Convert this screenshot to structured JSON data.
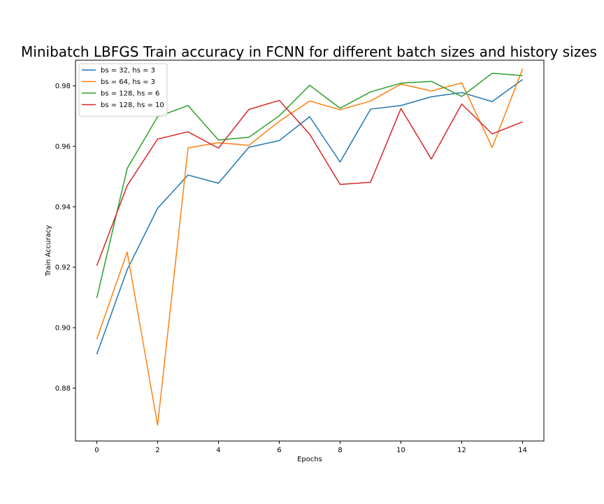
{
  "chart_data": {
    "type": "line",
    "title": "Minibatch LBFGS Train accuracy in FCNN for different batch sizes and history sizes",
    "xlabel": "Epochs",
    "ylabel": "Train Accuracy",
    "xlim": [
      -0.7,
      14.7
    ],
    "ylim": [
      0.8625,
      0.9885
    ],
    "xticks": [
      0,
      2,
      4,
      6,
      8,
      10,
      12,
      14
    ],
    "yticks": [
      0.88,
      0.9,
      0.92,
      0.94,
      0.96,
      0.98
    ],
    "ytick_labels": [
      "0.88",
      "0.90",
      "0.92",
      "0.94",
      "0.96",
      "0.98"
    ],
    "grid": false,
    "legend_position": "top-left",
    "x": [
      0,
      1,
      2,
      3,
      4,
      5,
      6,
      7,
      8,
      9,
      10,
      11,
      12,
      13,
      14
    ],
    "series": [
      {
        "name": "bs = 32, hs = 3",
        "color": "#1f77b4",
        "values": [
          0.8912,
          0.9192,
          0.9395,
          0.9505,
          0.9478,
          0.9597,
          0.9619,
          0.9698,
          0.9548,
          0.9723,
          0.9735,
          0.9764,
          0.9778,
          0.9748,
          0.9821
        ]
      },
      {
        "name": "bs = 64, hs = 3",
        "color": "#ff7f0e",
        "values": [
          0.8962,
          0.925,
          0.8677,
          0.9595,
          0.9612,
          0.9603,
          0.9683,
          0.975,
          0.9721,
          0.975,
          0.9806,
          0.9783,
          0.981,
          0.9596,
          0.9856
        ]
      },
      {
        "name": "bs = 128, hs = 6",
        "color": "#2ca02c",
        "values": [
          0.9098,
          0.9527,
          0.9698,
          0.9735,
          0.9621,
          0.963,
          0.9701,
          0.9802,
          0.9726,
          0.978,
          0.9809,
          0.9815,
          0.9765,
          0.9842,
          0.9834
        ]
      },
      {
        "name": "bs = 128, hs = 10",
        "color": "#d62728",
        "values": [
          0.9205,
          0.947,
          0.9624,
          0.9648,
          0.9594,
          0.9722,
          0.9752,
          0.964,
          0.9474,
          0.9481,
          0.9725,
          0.9558,
          0.974,
          0.9641,
          0.9681
        ]
      }
    ]
  }
}
